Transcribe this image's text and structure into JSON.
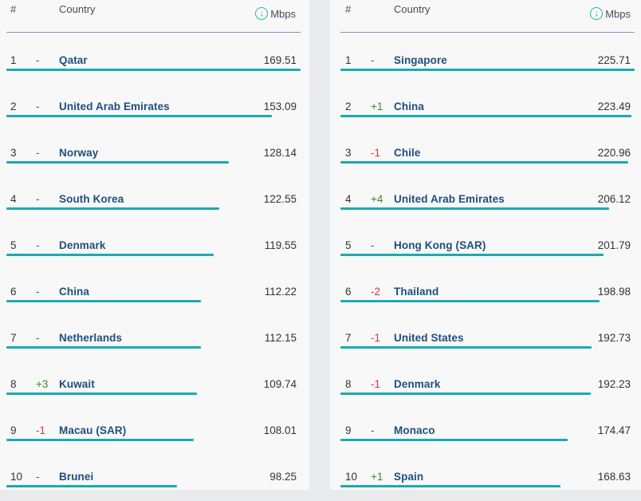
{
  "header": {
    "rank_label": "#",
    "country_label": "Country",
    "mbps_label": "Mbps",
    "download_icon": "download-circle-icon",
    "accent_color": "#1aabb0"
  },
  "left_table": {
    "rows": [
      {
        "rank": "1",
        "change": "-",
        "country": "Qatar",
        "mbps": "169.51",
        "mbps_value": 169.51
      },
      {
        "rank": "2",
        "change": "-",
        "country": "United Arab Emirates",
        "mbps": "153.09",
        "mbps_value": 153.09
      },
      {
        "rank": "3",
        "change": "-",
        "country": "Norway",
        "mbps": "128.14",
        "mbps_value": 128.14
      },
      {
        "rank": "4",
        "change": "-",
        "country": "South Korea",
        "mbps": "122.55",
        "mbps_value": 122.55
      },
      {
        "rank": "5",
        "change": "-",
        "country": "Denmark",
        "mbps": "119.55",
        "mbps_value": 119.55
      },
      {
        "rank": "6",
        "change": "-",
        "country": "China",
        "mbps": "112.22",
        "mbps_value": 112.22
      },
      {
        "rank": "7",
        "change": "-",
        "country": "Netherlands",
        "mbps": "112.15",
        "mbps_value": 112.15
      },
      {
        "rank": "8",
        "change": "+3",
        "country": "Kuwait",
        "mbps": "109.74",
        "mbps_value": 109.74
      },
      {
        "rank": "9",
        "change": "-1",
        "country": "Macau (SAR)",
        "mbps": "108.01",
        "mbps_value": 108.01
      },
      {
        "rank": "10",
        "change": "-",
        "country": "Brunei",
        "mbps": "98.25",
        "mbps_value": 98.25
      }
    ]
  },
  "right_table": {
    "rows": [
      {
        "rank": "1",
        "change": "-",
        "country": "Singapore",
        "mbps": "225.71",
        "mbps_value": 225.71
      },
      {
        "rank": "2",
        "change": "+1",
        "country": "China",
        "mbps": "223.49",
        "mbps_value": 223.49
      },
      {
        "rank": "3",
        "change": "-1",
        "country": "Chile",
        "mbps": "220.96",
        "mbps_value": 220.96
      },
      {
        "rank": "4",
        "change": "+4",
        "country": "United Arab Emirates",
        "mbps": "206.12",
        "mbps_value": 206.12
      },
      {
        "rank": "5",
        "change": "-",
        "country": "Hong Kong (SAR)",
        "mbps": "201.79",
        "mbps_value": 201.79
      },
      {
        "rank": "6",
        "change": "-2",
        "country": "Thailand",
        "mbps": "198.98",
        "mbps_value": 198.98
      },
      {
        "rank": "7",
        "change": "-1",
        "country": "United States",
        "mbps": "192.73",
        "mbps_value": 192.73
      },
      {
        "rank": "8",
        "change": "-1",
        "country": "Denmark",
        "mbps": "192.23",
        "mbps_value": 192.23
      },
      {
        "rank": "9",
        "change": "-",
        "country": "Monaco",
        "mbps": "174.47",
        "mbps_value": 174.47
      },
      {
        "rank": "10",
        "change": "+1",
        "country": "Spain",
        "mbps": "168.63",
        "mbps_value": 168.63
      }
    ]
  }
}
